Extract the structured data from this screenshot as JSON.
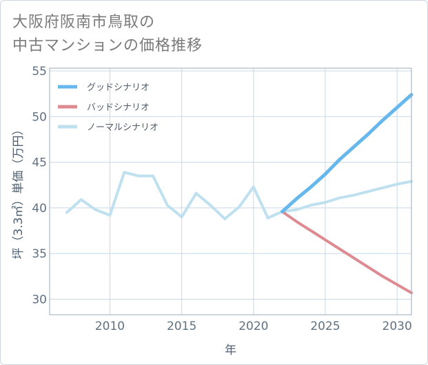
{
  "title_lines": [
    "大阪府阪南市鳥取の",
    "中古マンションの価格推移"
  ],
  "colors": {
    "good": "#66b8ec",
    "bad": "#dd8a91",
    "normal": "#bfe0ef",
    "grid": "#c8d8e6",
    "border": "#9aa9b8"
  },
  "chart_data": {
    "type": "line",
    "title": "大阪府阪南市鳥取の中古マンションの価格推移",
    "xlabel": "年",
    "ylabel": "坪（3.3㎡）単価（万円）",
    "xlim": [
      2005.8,
      2031
    ],
    "ylim": [
      28.3,
      55.3
    ],
    "xticks": [
      2010,
      2015,
      2020,
      2025,
      2030
    ],
    "yticks": [
      30,
      35,
      40,
      45,
      50,
      55
    ],
    "grid": true,
    "legend_position": "top-left",
    "series": [
      {
        "key": "good",
        "name": "グッドシナリオ",
        "x": [
          2022,
          2023,
          2024,
          2025,
          2026,
          2027,
          2028,
          2029,
          2030,
          2031
        ],
        "values": [
          39.6,
          41.0,
          42.3,
          43.7,
          45.3,
          46.7,
          48.1,
          49.6,
          51.0,
          52.4
        ]
      },
      {
        "key": "bad",
        "name": "バッドシナリオ",
        "x": [
          2022,
          2023,
          2024,
          2025,
          2026,
          2027,
          2028,
          2029,
          2030,
          2031
        ],
        "values": [
          39.6,
          38.5,
          37.5,
          36.5,
          35.5,
          34.5,
          33.5,
          32.5,
          31.6,
          30.7
        ]
      },
      {
        "key": "normal",
        "name": "ノーマルシナリオ",
        "x": [
          2007,
          2008,
          2009,
          2010,
          2011,
          2012,
          2013,
          2014,
          2015,
          2016,
          2017,
          2018,
          2019,
          2020,
          2021,
          2022,
          2023,
          2024,
          2025,
          2026,
          2027,
          2028,
          2029,
          2030,
          2031
        ],
        "values": [
          39.5,
          40.9,
          39.8,
          39.2,
          43.9,
          43.5,
          43.5,
          40.3,
          39.0,
          41.6,
          40.3,
          38.8,
          40.1,
          42.3,
          38.9,
          39.6,
          39.8,
          40.3,
          40.6,
          41.1,
          41.4,
          41.8,
          42.2,
          42.6,
          42.9
        ]
      }
    ]
  }
}
